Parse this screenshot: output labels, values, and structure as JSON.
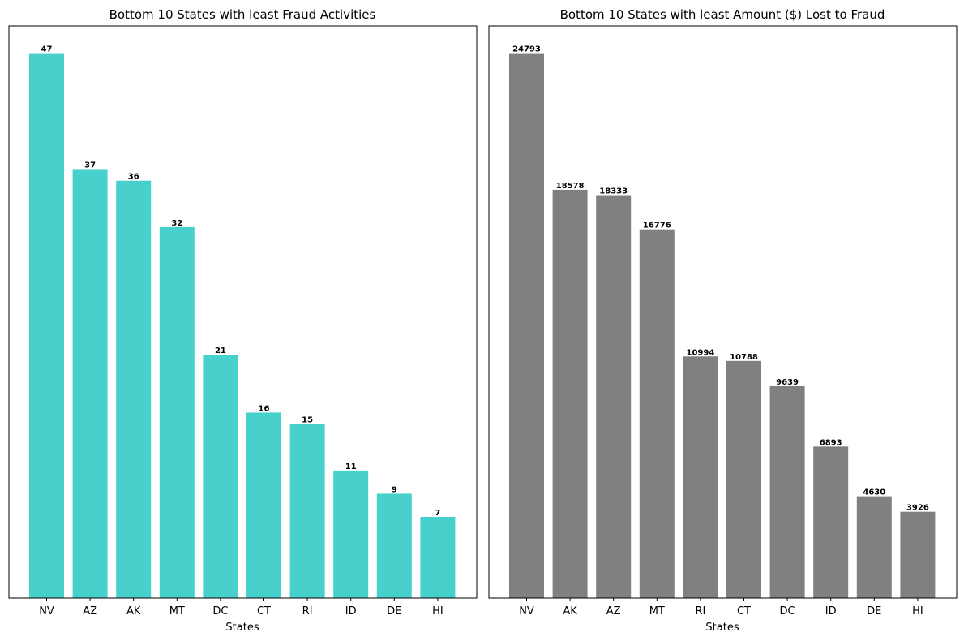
{
  "chart_data": [
    {
      "type": "bar",
      "title": "Bottom 10 States with least Fraud Activities",
      "xlabel": "States",
      "ylabel": "",
      "categories": [
        "NV",
        "AZ",
        "AK",
        "MT",
        "DC",
        "CT",
        "RI",
        "ID",
        "DE",
        "HI"
      ],
      "values": [
        47,
        37,
        36,
        32,
        21,
        16,
        15,
        11,
        9,
        7
      ],
      "data_labels": [
        "47",
        "37",
        "36",
        "32",
        "21",
        "16",
        "15",
        "11",
        "9",
        "7"
      ],
      "ylim": [
        0,
        49.35
      ],
      "color": "#48d1cc",
      "grid": false,
      "y_ticks_visible": false
    },
    {
      "type": "bar",
      "title": "Bottom 10 States with least Amount ($) Lost to Fraud",
      "xlabel": "States",
      "ylabel": "",
      "categories": [
        "NV",
        "AK",
        "AZ",
        "MT",
        "RI",
        "CT",
        "DC",
        "ID",
        "DE",
        "HI"
      ],
      "values": [
        24793,
        18578,
        18333,
        16776,
        10994,
        10788,
        9639,
        6893,
        4630,
        3926
      ],
      "data_labels": [
        "24793",
        "18578",
        "18333",
        "16776",
        "10994",
        "10788",
        "9639",
        "6893",
        "4630",
        "3926"
      ],
      "ylim": [
        0,
        26032.65
      ],
      "color": "#808080",
      "grid": false,
      "y_ticks_visible": false
    }
  ]
}
